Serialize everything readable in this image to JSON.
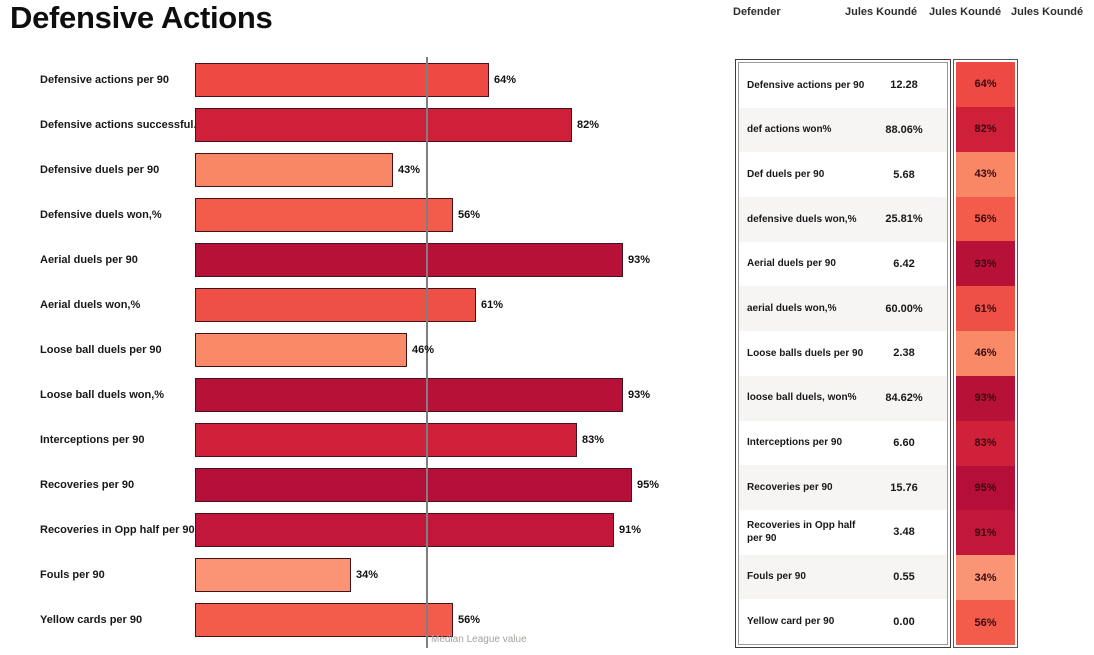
{
  "title": "Defensive Actions",
  "header": {
    "position_label": "Defender",
    "player_names": [
      "Jules Koundé",
      "Jules Koundé",
      "Jules Koundé"
    ]
  },
  "chart_data": {
    "type": "bar",
    "orientation": "horizontal",
    "title": "Defensive Actions",
    "categories": [
      "Defensive actions per 90",
      "Defensive actions successful.%",
      "Defensive duels per 90",
      "Defensive duels won,%",
      "Aerial duels per 90",
      "Aerial duels won,%",
      "Loose ball duels per 90",
      "Loose ball duels won,%",
      "Interceptions per 90",
      "Recoveries per 90",
      "Recoveries in Opp half per 90",
      "Fouls per 90",
      "Yellow cards per 90"
    ],
    "values": [
      64,
      82,
      43,
      56,
      93,
      61,
      46,
      93,
      83,
      95,
      91,
      34,
      56
    ],
    "value_labels": [
      "64%",
      "82%",
      "43%",
      "56%",
      "93%",
      "61%",
      "46%",
      "93%",
      "83%",
      "95%",
      "91%",
      "34%",
      "56%"
    ],
    "bar_colors": [
      "#EE4A43",
      "#CE2038",
      "#F98765",
      "#F35C4B",
      "#B81138",
      "#EF5046",
      "#FA8A67",
      "#B81138",
      "#CF2139",
      "#B50E38",
      "#C2163A",
      "#FB9474",
      "#F35C4B"
    ],
    "xlim": [
      0,
      100
    ],
    "xlabel": "",
    "ylabel": "",
    "grid": false,
    "legend": false,
    "median_line": {
      "value": 50,
      "label": "Median League value",
      "color": "#7f7f7f"
    }
  },
  "table": {
    "rows": [
      {
        "metric": "Defensive actions per 90",
        "value": "12.28",
        "percentile": "64%",
        "color": "#EE4A43"
      },
      {
        "metric": "def actions won%",
        "value": "88.06%",
        "percentile": "82%",
        "color": "#CE2038"
      },
      {
        "metric": "Def duels per 90",
        "value": "5.68",
        "percentile": "43%",
        "color": "#F98765"
      },
      {
        "metric": "defensive duels won,%",
        "value": "25.81%",
        "percentile": "56%",
        "color": "#F35C4B"
      },
      {
        "metric": "Aerial duels per 90",
        "value": "6.42",
        "percentile": "93%",
        "color": "#B81138"
      },
      {
        "metric": "aerial duels won,%",
        "value": "60.00%",
        "percentile": "61%",
        "color": "#EF5046"
      },
      {
        "metric": "Loose balls duels per 90",
        "value": "2.38",
        "percentile": "46%",
        "color": "#FA8A67"
      },
      {
        "metric": "loose ball duels, won%",
        "value": "84.62%",
        "percentile": "93%",
        "color": "#B81138"
      },
      {
        "metric": "Interceptions per 90",
        "value": "6.60",
        "percentile": "83%",
        "color": "#CF2139"
      },
      {
        "metric": "Recoveries per 90",
        "value": "15.76",
        "percentile": "95%",
        "color": "#B50E38"
      },
      {
        "metric": "Recoveries in Opp half per 90",
        "value": "3.48",
        "percentile": "91%",
        "color": "#C2163A"
      },
      {
        "metric": "Fouls per 90",
        "value": "0.55",
        "percentile": "34%",
        "color": "#FB9474"
      },
      {
        "metric": "Yellow card per 90",
        "value": "0.00",
        "percentile": "56%",
        "color": "#F35C4B"
      }
    ]
  }
}
